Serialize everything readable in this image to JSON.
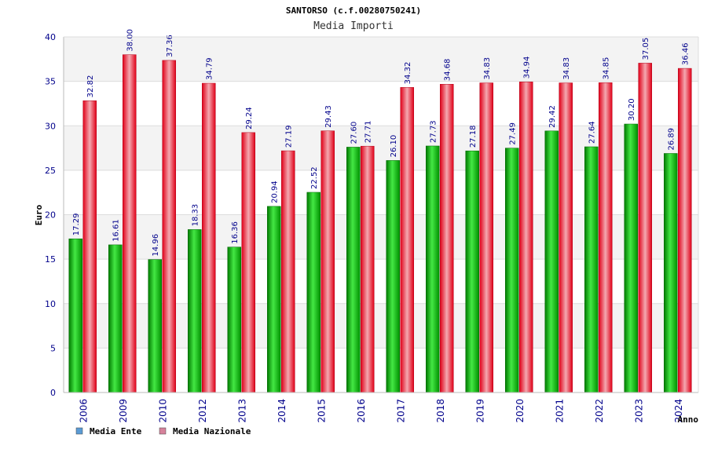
{
  "chart_data": {
    "type": "bar",
    "title": "SANTORSO (c.f.00280750241)",
    "subtitle": "Media Importi",
    "xlabel": "Anno",
    "ylabel": "Euro",
    "ylim": [
      0,
      40
    ],
    "yticks": [
      0,
      5,
      10,
      15,
      20,
      25,
      30,
      35,
      40
    ],
    "grid": true,
    "legend_position": "bottom-left",
    "categories": [
      "2006",
      "2009",
      "2010",
      "2012",
      "2013",
      "2014",
      "2015",
      "2016",
      "2017",
      "2018",
      "2019",
      "2020",
      "2021",
      "2022",
      "2023",
      "2024"
    ],
    "series": [
      {
        "name": "Media Ente",
        "color": "#00b000",
        "legend_color": "#5b9bd5",
        "values": [
          17.29,
          16.61,
          14.96,
          18.33,
          16.36,
          20.94,
          22.52,
          27.6,
          26.1,
          27.73,
          27.18,
          27.49,
          29.42,
          27.64,
          30.2,
          26.89
        ],
        "labels": [
          "17.29",
          "16.61",
          "14.96",
          "18.33",
          "16.36",
          "20.94",
          "22.52",
          "27.60",
          "26.10",
          "27.73",
          "27.18",
          "27.49",
          "29.42",
          "27.64",
          "30.20",
          "26.89"
        ]
      },
      {
        "name": "Media Nazionale",
        "color": "#e8102a",
        "legend_color": "#d6829b",
        "values": [
          32.82,
          38.0,
          37.36,
          34.79,
          29.24,
          27.19,
          29.43,
          27.71,
          34.32,
          34.68,
          34.83,
          34.94,
          34.83,
          34.85,
          37.05,
          36.46
        ],
        "labels": [
          "32.82",
          "38.00",
          "37.36",
          "34.79",
          "29.24",
          "27.19",
          "29.43",
          "27.71",
          "34.32",
          "34.68",
          "34.83",
          "34.94",
          "34.83",
          "34.85",
          "37.05",
          "36.46"
        ]
      }
    ]
  }
}
